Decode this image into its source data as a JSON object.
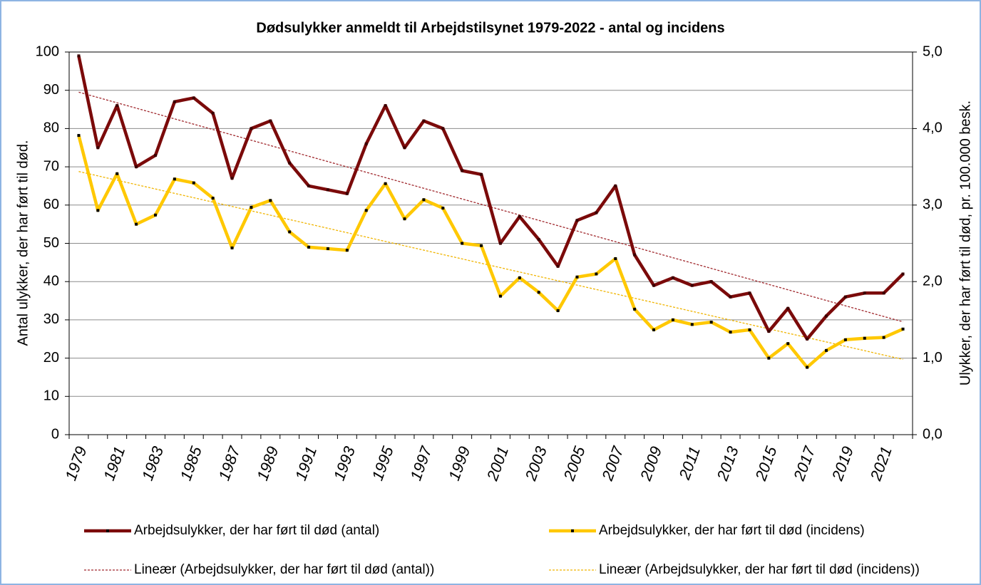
{
  "chart_data": {
    "type": "line",
    "title": "Dødsulykker anmeldt til Arbejdstilsynet 1979-2022 - antal og incidens",
    "ylabel": "Antal ulykker, der har ført til død.",
    "y2label": "Ulykker, der har ført til død, pr. 100.000 besk.",
    "categories": [
      "1979",
      null,
      "1981",
      null,
      "1983",
      null,
      "1985",
      null,
      "1987",
      null,
      "1989",
      null,
      "1991",
      null,
      "1993",
      null,
      "1995",
      null,
      "1997",
      null,
      "1999",
      null,
      "2001",
      null,
      "2003",
      null,
      "2005",
      null,
      "2007",
      null,
      "2009",
      null,
      "2011",
      null,
      "2013",
      null,
      "2015",
      null,
      "2017",
      null,
      "2019",
      null,
      "2021",
      null
    ],
    "series": [
      {
        "name": "Arbejdsulykker, der har ført til død (antal)",
        "color": "#7b0a0a",
        "axis": "y",
        "values": [
          99,
          75,
          86,
          70,
          73,
          87,
          88,
          84,
          67,
          80,
          82,
          71,
          65,
          64,
          63,
          76,
          86,
          75,
          82,
          80,
          69,
          68,
          50,
          57,
          51,
          44,
          56,
          58,
          65,
          47,
          39,
          41,
          39,
          40,
          36,
          37,
          27,
          33,
          25,
          31,
          36,
          37,
          37,
          42
        ]
      },
      {
        "name": "Arbejdsulykker, der har ført til død (incidens)",
        "color": "#ffc800",
        "axis": "y2",
        "values": [
          3.91,
          2.93,
          3.41,
          2.75,
          2.87,
          3.34,
          3.29,
          3.09,
          2.44,
          2.97,
          3.06,
          2.65,
          2.45,
          2.43,
          2.41,
          2.93,
          3.28,
          2.82,
          3.07,
          2.96,
          2.5,
          2.47,
          1.81,
          2.05,
          1.86,
          1.62,
          2.06,
          2.1,
          2.3,
          1.64,
          1.37,
          1.5,
          1.44,
          1.47,
          1.34,
          1.37,
          1.0,
          1.19,
          0.88,
          1.1,
          1.24,
          1.26,
          1.27,
          1.38
        ]
      }
    ],
    "trendlines": [
      {
        "name": "Lineær (Arbejdsulykker, der har ført til død (antal))",
        "color": "#a0282d",
        "series": 0
      },
      {
        "name": "Lineær (Arbejdsulykker, der har ført til død (incidens))",
        "color": "#f0b400",
        "series": 1
      }
    ],
    "ylim": [
      0,
      100
    ],
    "yticks": [
      0,
      10,
      20,
      30,
      40,
      50,
      60,
      70,
      80,
      90,
      100
    ],
    "y2lim": [
      0,
      5
    ],
    "y2ticks": [
      {
        "value": 0,
        "label": "0,0"
      },
      {
        "value": 1,
        "label": "1,0"
      },
      {
        "value": 2,
        "label": "2,0"
      },
      {
        "value": 3,
        "label": "3,0"
      },
      {
        "value": 4,
        "label": "4,0"
      },
      {
        "value": 5,
        "label": "5,0"
      }
    ],
    "grid": true
  }
}
